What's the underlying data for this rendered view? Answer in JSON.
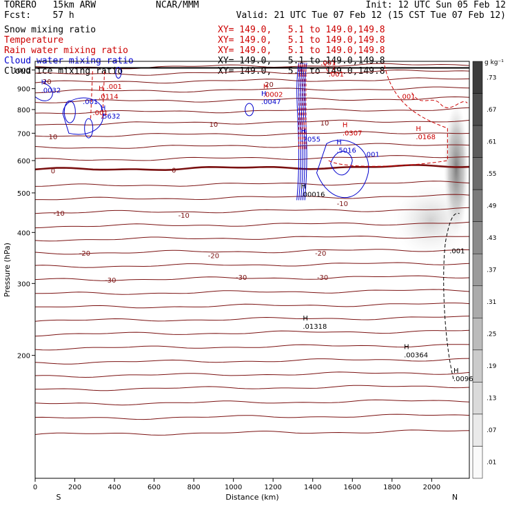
{
  "header": {
    "model": "TORERO   15km ARW",
    "center": "NCAR/MMM",
    "init": "Init: 12 UTC Sun 05 Feb 12",
    "fcst": "Fcst:    57 h",
    "valid": "Valid: 21 UTC Tue 07 Feb 12 (15 CST Tue 07 Feb 12)"
  },
  "legend": [
    {
      "name": "Snow mixing ratio",
      "xy": "XY= 149.0,   5.1 to 149.0,149.8",
      "color": "#000000",
      "xy_color": "#cc0000"
    },
    {
      "name": "Temperature",
      "xy": "XY= 149.0,   5.1 to 149.0,149.8",
      "color": "#cc0000",
      "xy_color": "#cc0000"
    },
    {
      "name": "Rain water mixing ratio",
      "xy": "XY= 149.0,   5.1 to 149.0,149.8",
      "color": "#cc0000",
      "xy_color": "#cc0000"
    },
    {
      "name": "Cloud water mixing ratio",
      "xy": "XY= 149.0,   5.1 to 149.0,149.8",
      "color": "#0000cc",
      "xy_color": "#000000"
    },
    {
      "name": "Cloud ice mixing ratio",
      "xy": "XY= 149.0,   5.1 to 149.0,149.8",
      "color": "#000000",
      "xy_color": "#000000"
    }
  ],
  "chart_data": {
    "type": "contour",
    "xlabel": "Distance (km)",
    "ylabel": "Pressure (hPa)",
    "xlim": [
      0,
      2190
    ],
    "ylim": [
      1050,
      100
    ],
    "y_scale": "log",
    "x_ticks": [
      0,
      200,
      400,
      600,
      800,
      1000,
      1200,
      1400,
      1600,
      1800,
      2000
    ],
    "y_ticks": [
      200,
      300,
      400,
      500,
      600,
      700,
      800,
      900,
      1000
    ],
    "x_end_labels": [
      "S",
      "N"
    ],
    "colorbar": {
      "unit": "g kg⁻¹",
      "labels": [
        ".73",
        ".67",
        ".61",
        ".55",
        ".49",
        ".43",
        ".37",
        ".31",
        ".25",
        ".19",
        ".13",
        ".07",
        ".01"
      ]
    },
    "temperature_isotherms": [
      {
        "value": -30,
        "labels": [
          {
            "x": 380,
            "p": 305
          },
          {
            "x": 1040,
            "p": 310
          },
          {
            "x": 1450,
            "p": 310
          }
        ]
      },
      {
        "value": -20,
        "labels": [
          {
            "x": 250,
            "p": 355
          },
          {
            "x": 900,
            "p": 350
          },
          {
            "x": 1440,
            "p": 355
          }
        ]
      },
      {
        "value": -10,
        "labels": [
          {
            "x": 120,
            "p": 445
          },
          {
            "x": 750,
            "p": 440
          },
          {
            "x": 1550,
            "p": 470
          }
        ]
      },
      {
        "value": 0,
        "labels": [
          {
            "x": 90,
            "p": 565
          },
          {
            "x": 700,
            "p": 567
          }
        ]
      },
      {
        "value": 10,
        "labels": [
          {
            "x": 90,
            "p": 685
          },
          {
            "x": 900,
            "p": 735
          },
          {
            "x": 1460,
            "p": 740
          }
        ]
      },
      {
        "value": 20,
        "labels": [
          {
            "x": 60,
            "p": 935
          },
          {
            "x": 1180,
            "p": 920
          }
        ]
      }
    ],
    "annotations": [
      {
        "text": "H",
        "value": ".01318",
        "x": 1350,
        "p": 235,
        "color": "#000000"
      },
      {
        "text": "H",
        "value": ".00364",
        "x": 1860,
        "p": 200,
        "color": "#000000"
      },
      {
        "text": "H",
        "value": ".0096",
        "x": 2110,
        "p": 175,
        "color": "#000000"
      },
      {
        "text": "",
        "value": ".001",
        "x": 2090,
        "p": 360,
        "color": "#000000"
      },
      {
        "text": "H",
        "value": ".00016",
        "x": 1340,
        "p": 495,
        "color": "#000000"
      },
      {
        "text": "H",
        "value": ".5016",
        "x": 1520,
        "p": 635,
        "color": "#0000cc"
      },
      {
        "text": "",
        "value": ".001",
        "x": 1660,
        "p": 620,
        "color": "#0000cc"
      },
      {
        "text": "H",
        "value": ".7055",
        "x": 1340,
        "p": 675,
        "color": "#0000cc"
      },
      {
        "text": "H",
        "value": ".0307",
        "x": 1550,
        "p": 700,
        "color": "#cc0000"
      },
      {
        "text": "H",
        "value": ".0168",
        "x": 1920,
        "p": 685,
        "color": "#cc0000"
      },
      {
        "text": "H",
        "value": ".5632",
        "x": 330,
        "p": 770,
        "color": "#0000cc"
      },
      {
        "text": "",
        "value": ".001",
        "x": 290,
        "p": 785,
        "color": "#cc0000"
      },
      {
        "text": "",
        "value": ".001",
        "x": 240,
        "p": 835,
        "color": "#0000cc"
      },
      {
        "text": "H",
        "value": ".0114",
        "x": 320,
        "p": 860,
        "color": "#cc0000"
      },
      {
        "text": "",
        "value": ".001",
        "x": 360,
        "p": 910,
        "color": "#cc0000"
      },
      {
        "text": "H",
        "value": ".0032",
        "x": 30,
        "p": 890,
        "color": "#0000cc"
      },
      {
        "text": "H",
        "value": ".0047",
        "x": 1140,
        "p": 835,
        "color": "#0000cc"
      },
      {
        "text": "H",
        "value": ".0002",
        "x": 1150,
        "p": 870,
        "color": "#cc0000"
      },
      {
        "text": "",
        "value": ".001",
        "x": 1840,
        "p": 860,
        "color": "#cc0000"
      },
      {
        "text": "",
        "value": ".001",
        "x": 1480,
        "p": 975,
        "color": "#cc0000"
      },
      {
        "text": "",
        "value": ".001",
        "x": 1440,
        "p": 1040,
        "color": "#cc0000"
      }
    ]
  }
}
